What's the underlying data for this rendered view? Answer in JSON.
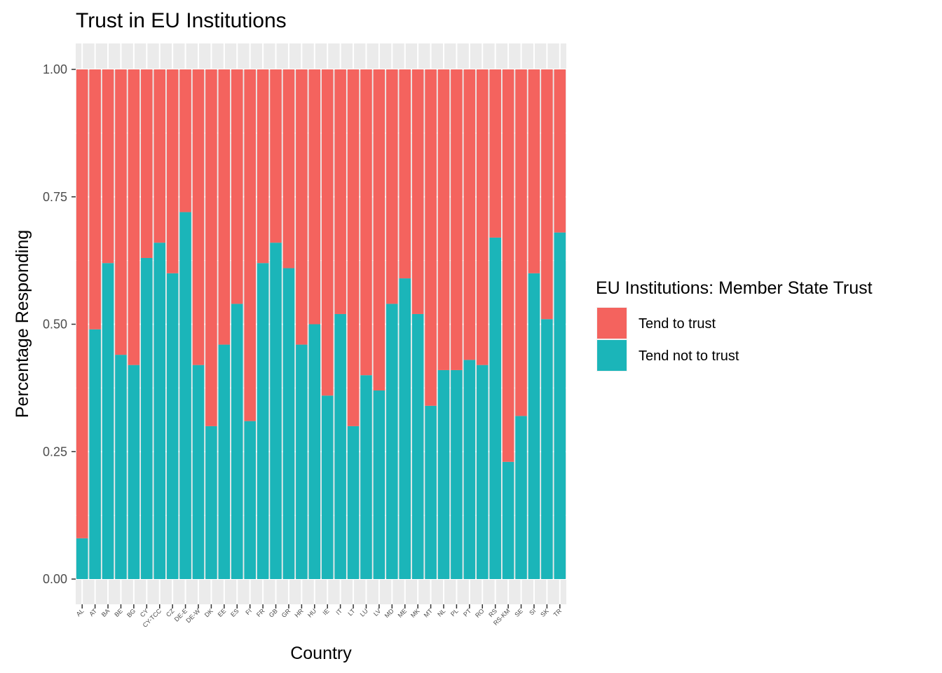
{
  "chart_data": {
    "type": "bar",
    "stacked": true,
    "title": "Trust in EU Institutions",
    "xlabel": "Country",
    "ylabel": "Percentage Responding",
    "ylim": [
      0,
      1
    ],
    "yticks": [
      "0.00",
      "0.25",
      "0.50",
      "0.75",
      "1.00"
    ],
    "grid": true,
    "legend_position": "right",
    "categories": [
      "AL",
      "AT",
      "BA",
      "BE",
      "BG",
      "CY",
      "CY-TCC",
      "CZ",
      "DE-E",
      "DE-W",
      "DK",
      "EE",
      "ES",
      "FI",
      "FR",
      "GB",
      "GR",
      "HR",
      "HU",
      "IE",
      "IT",
      "LT",
      "LU",
      "LV",
      "MD",
      "ME",
      "MK",
      "MT",
      "NL",
      "PL",
      "PT",
      "RO",
      "RS",
      "RS-KM",
      "SE",
      "SI",
      "SK",
      "TR"
    ],
    "series": [
      {
        "name": "Tend not to trust",
        "color": "#1BB5B9",
        "values": [
          0.08,
          0.49,
          0.62,
          0.44,
          0.42,
          0.63,
          0.66,
          0.6,
          0.72,
          0.42,
          0.3,
          0.46,
          0.54,
          0.31,
          0.62,
          0.66,
          0.61,
          0.46,
          0.5,
          0.36,
          0.52,
          0.3,
          0.4,
          0.37,
          0.54,
          0.59,
          0.52,
          0.34,
          0.41,
          0.41,
          0.43,
          0.42,
          0.67,
          0.23,
          0.32,
          0.6,
          0.51,
          0.68
        ]
      },
      {
        "name": "Tend to trust",
        "color": "#F4635E",
        "values": [
          0.92,
          0.51,
          0.38,
          0.56,
          0.58,
          0.37,
          0.34,
          0.4,
          0.28,
          0.58,
          0.7,
          0.54,
          0.46,
          0.69,
          0.38,
          0.34,
          0.39,
          0.54,
          0.5,
          0.64,
          0.48,
          0.7,
          0.6,
          0.63,
          0.46,
          0.41,
          0.48,
          0.66,
          0.59,
          0.59,
          0.57,
          0.58,
          0.33,
          0.77,
          0.68,
          0.4,
          0.49,
          0.32
        ]
      }
    ],
    "legend": {
      "title": "EU Institutions: Member State Trust",
      "entries": [
        {
          "label": "Tend to trust",
          "color": "#F4635E"
        },
        {
          "label": "Tend not to trust",
          "color": "#1BB5B9"
        }
      ]
    }
  }
}
